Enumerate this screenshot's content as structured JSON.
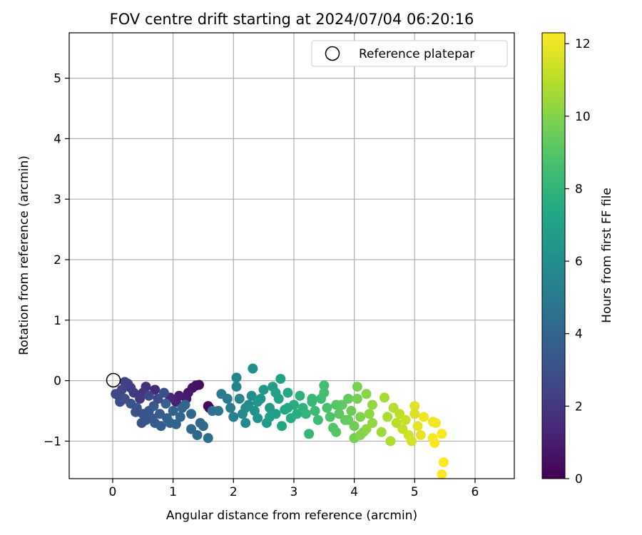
{
  "chart_data": {
    "type": "scatter",
    "title": "FOV centre drift starting at 2024/07/04 06:20:16",
    "xlabel": "Angular distance from reference (arcmin)",
    "ylabel": "Rotation from reference (arcmin)",
    "xlim": [
      -0.72,
      6.65
    ],
    "ylim": [
      -1.62,
      5.75
    ],
    "x_ticks": [
      "0",
      "1",
      "2",
      "3",
      "4",
      "5",
      "6"
    ],
    "y_ticks": [
      "−1",
      "0",
      "1",
      "2",
      "3",
      "4",
      "5"
    ],
    "grid": true,
    "legend": {
      "position": "top-right",
      "entries": [
        "Reference platepar"
      ]
    },
    "reference_point": {
      "x": 0,
      "y": 0,
      "label": "Reference platepar"
    },
    "colorbar": {
      "label": "Hours from first FF file",
      "range": [
        0,
        12.3
      ],
      "ticks": [
        "0",
        "2",
        "4",
        "6",
        "8",
        "10",
        "12"
      ],
      "colormap": "viridis"
    },
    "points": [
      {
        "x": 1.6,
        "y": -0.45,
        "h": 0.1
      },
      {
        "x": 1.58,
        "y": -0.42,
        "h": 0.2
      },
      {
        "x": 1.38,
        "y": -0.08,
        "h": 0.4
      },
      {
        "x": 1.43,
        "y": -0.07,
        "h": 0.5
      },
      {
        "x": 1.32,
        "y": -0.12,
        "h": 0.6
      },
      {
        "x": 1.25,
        "y": -0.2,
        "h": 0.8
      },
      {
        "x": 1.22,
        "y": -0.3,
        "h": 0.9
      },
      {
        "x": 1.1,
        "y": -0.25,
        "h": 1.0
      },
      {
        "x": 1.05,
        "y": -0.35,
        "h": 1.1
      },
      {
        "x": 0.95,
        "y": -0.28,
        "h": 1.3
      },
      {
        "x": 0.7,
        "y": -0.15,
        "h": 1.5
      },
      {
        "x": 0.55,
        "y": -0.1,
        "h": 1.7
      },
      {
        "x": 0.5,
        "y": -0.2,
        "h": 1.9
      },
      {
        "x": 0.45,
        "y": -0.3,
        "h": 2.0
      },
      {
        "x": 0.35,
        "y": -0.2,
        "h": 2.1
      },
      {
        "x": 0.3,
        "y": -0.12,
        "h": 2.2
      },
      {
        "x": 0.25,
        "y": -0.05,
        "h": 2.3
      },
      {
        "x": 0.2,
        "y": -0.02,
        "h": 2.4
      },
      {
        "x": 0.15,
        "y": -0.15,
        "h": 2.5
      },
      {
        "x": 0.1,
        "y": -0.25,
        "h": 2.6
      },
      {
        "x": 0.05,
        "y": -0.22,
        "h": 2.7
      },
      {
        "x": 0.12,
        "y": -0.35,
        "h": 2.8
      },
      {
        "x": 0.2,
        "y": -0.3,
        "h": 2.9
      },
      {
        "x": 0.3,
        "y": -0.38,
        "h": 3.0
      },
      {
        "x": 0.4,
        "y": -0.45,
        "h": 3.1
      },
      {
        "x": 0.5,
        "y": -0.55,
        "h": 3.2
      },
      {
        "x": 0.6,
        "y": -0.5,
        "h": 3.3
      },
      {
        "x": 0.65,
        "y": -0.62,
        "h": 3.4
      },
      {
        "x": 0.7,
        "y": -0.7,
        "h": 3.5
      },
      {
        "x": 0.8,
        "y": -0.75,
        "h": 3.6
      },
      {
        "x": 0.9,
        "y": -0.62,
        "h": 3.7
      },
      {
        "x": 0.95,
        "y": -0.7,
        "h": 3.8
      },
      {
        "x": 1.05,
        "y": -0.72,
        "h": 3.9
      },
      {
        "x": 1.12,
        "y": -0.6,
        "h": 4.0
      },
      {
        "x": 1.3,
        "y": -0.8,
        "h": 4.1
      },
      {
        "x": 1.4,
        "y": -0.9,
        "h": 4.2
      },
      {
        "x": 1.5,
        "y": -0.75,
        "h": 4.3
      },
      {
        "x": 1.58,
        "y": -0.95,
        "h": 4.4
      },
      {
        "x": 1.45,
        "y": -0.7,
        "h": 4.2
      },
      {
        "x": 1.3,
        "y": -0.55,
        "h": 4.1
      },
      {
        "x": 1.15,
        "y": -0.45,
        "h": 4.0
      },
      {
        "x": 1.0,
        "y": -0.5,
        "h": 3.9
      },
      {
        "x": 0.88,
        "y": -0.38,
        "h": 3.8
      },
      {
        "x": 0.78,
        "y": -0.55,
        "h": 3.6
      },
      {
        "x": 0.68,
        "y": -0.42,
        "h": 3.4
      },
      {
        "x": 0.55,
        "y": -0.65,
        "h": 3.3
      },
      {
        "x": 0.48,
        "y": -0.7,
        "h": 3.1
      },
      {
        "x": 0.38,
        "y": -0.52,
        "h": 3.0
      },
      {
        "x": 0.6,
        "y": -0.25,
        "h": 2.6
      },
      {
        "x": 0.75,
        "y": -0.3,
        "h": 2.8
      },
      {
        "x": 0.85,
        "y": -0.2,
        "h": 3.0
      },
      {
        "x": 1.2,
        "y": -0.4,
        "h": 4.1
      },
      {
        "x": 1.65,
        "y": -0.5,
        "h": 4.6
      },
      {
        "x": 1.75,
        "y": -0.5,
        "h": 4.8
      },
      {
        "x": 1.8,
        "y": -0.22,
        "h": 5.0
      },
      {
        "x": 1.9,
        "y": -0.3,
        "h": 5.1
      },
      {
        "x": 1.95,
        "y": -0.45,
        "h": 5.2
      },
      {
        "x": 2.0,
        "y": -0.6,
        "h": 5.3
      },
      {
        "x": 2.05,
        "y": -0.1,
        "h": 5.4
      },
      {
        "x": 2.05,
        "y": 0.05,
        "h": 5.5
      },
      {
        "x": 2.1,
        "y": -0.3,
        "h": 5.6
      },
      {
        "x": 2.15,
        "y": -0.55,
        "h": 5.7
      },
      {
        "x": 2.2,
        "y": -0.7,
        "h": 5.8
      },
      {
        "x": 2.25,
        "y": -0.4,
        "h": 5.9
      },
      {
        "x": 2.3,
        "y": -0.25,
        "h": 6.0
      },
      {
        "x": 2.32,
        "y": 0.2,
        "h": 6.1
      },
      {
        "x": 2.35,
        "y": -0.5,
        "h": 6.2
      },
      {
        "x": 2.4,
        "y": -0.62,
        "h": 6.3
      },
      {
        "x": 2.45,
        "y": -0.3,
        "h": 6.4
      },
      {
        "x": 2.5,
        "y": -0.15,
        "h": 6.5
      },
      {
        "x": 2.55,
        "y": -0.7,
        "h": 6.6
      },
      {
        "x": 2.6,
        "y": -0.45,
        "h": 6.7
      },
      {
        "x": 2.65,
        "y": -0.1,
        "h": 6.8
      },
      {
        "x": 2.7,
        "y": -0.55,
        "h": 6.9
      },
      {
        "x": 2.75,
        "y": -0.3,
        "h": 7.0
      },
      {
        "x": 2.78,
        "y": 0.03,
        "h": 7.1
      },
      {
        "x": 2.8,
        "y": -0.75,
        "h": 7.2
      },
      {
        "x": 2.85,
        "y": -0.48,
        "h": 7.3
      },
      {
        "x": 2.9,
        "y": -0.2,
        "h": 7.4
      },
      {
        "x": 2.95,
        "y": -0.62,
        "h": 7.5
      },
      {
        "x": 3.0,
        "y": -0.4,
        "h": 7.6
      },
      {
        "x": 3.05,
        "y": -0.55,
        "h": 7.7
      },
      {
        "x": 3.1,
        "y": -0.25,
        "h": 7.8
      },
      {
        "x": 3.15,
        "y": -0.45,
        "h": 7.9
      },
      {
        "x": 2.2,
        "y": -0.45,
        "h": 5.9
      },
      {
        "x": 2.4,
        "y": -0.35,
        "h": 6.4
      },
      {
        "x": 2.6,
        "y": -0.6,
        "h": 6.9
      },
      {
        "x": 2.7,
        "y": -0.2,
        "h": 7.1
      },
      {
        "x": 2.9,
        "y": -0.45,
        "h": 7.4
      },
      {
        "x": 3.2,
        "y": -0.55,
        "h": 8.0
      },
      {
        "x": 3.25,
        "y": -0.88,
        "h": 8.1
      },
      {
        "x": 3.3,
        "y": -0.35,
        "h": 8.2
      },
      {
        "x": 3.35,
        "y": -0.5,
        "h": 8.3
      },
      {
        "x": 3.4,
        "y": -0.65,
        "h": 8.4
      },
      {
        "x": 3.45,
        "y": -0.3,
        "h": 8.5
      },
      {
        "x": 3.5,
        "y": -0.08,
        "h": 8.6
      },
      {
        "x": 3.55,
        "y": -0.45,
        "h": 8.7
      },
      {
        "x": 3.6,
        "y": -0.6,
        "h": 8.8
      },
      {
        "x": 3.65,
        "y": -0.78,
        "h": 8.9
      },
      {
        "x": 3.7,
        "y": -0.85,
        "h": 9.0
      },
      {
        "x": 3.75,
        "y": -0.55,
        "h": 9.1
      },
      {
        "x": 3.8,
        "y": -0.4,
        "h": 9.2
      },
      {
        "x": 3.85,
        "y": -0.65,
        "h": 9.3
      },
      {
        "x": 3.9,
        "y": -0.3,
        "h": 9.4
      },
      {
        "x": 3.95,
        "y": -0.5,
        "h": 9.5
      },
      {
        "x": 4.0,
        "y": -0.75,
        "h": 9.6
      },
      {
        "x": 4.05,
        "y": -0.3,
        "h": 9.7
      },
      {
        "x": 4.05,
        "y": -0.1,
        "h": 9.8
      },
      {
        "x": 4.1,
        "y": -0.6,
        "h": 9.9
      },
      {
        "x": 4.15,
        "y": -0.85,
        "h": 10.0
      },
      {
        "x": 4.2,
        "y": -0.22,
        "h": 10.1
      },
      {
        "x": 4.25,
        "y": -0.55,
        "h": 10.2
      },
      {
        "x": 4.3,
        "y": -0.7,
        "h": 10.3
      },
      {
        "x": 4.0,
        "y": -0.95,
        "h": 9.7
      },
      {
        "x": 4.1,
        "y": -0.9,
        "h": 10.0
      },
      {
        "x": 4.2,
        "y": -0.8,
        "h": 10.2
      },
      {
        "x": 4.45,
        "y": -0.85,
        "h": 10.5
      },
      {
        "x": 4.5,
        "y": -0.28,
        "h": 10.6
      },
      {
        "x": 4.55,
        "y": -0.6,
        "h": 10.7
      },
      {
        "x": 4.6,
        "y": -1.0,
        "h": 10.8
      },
      {
        "x": 4.65,
        "y": -0.45,
        "h": 10.9
      },
      {
        "x": 4.7,
        "y": -0.7,
        "h": 11.0
      },
      {
        "x": 4.75,
        "y": -0.55,
        "h": 11.1
      },
      {
        "x": 4.8,
        "y": -0.8,
        "h": 11.2
      },
      {
        "x": 4.85,
        "y": -0.65,
        "h": 11.3
      },
      {
        "x": 4.9,
        "y": -0.9,
        "h": 11.4
      },
      {
        "x": 4.95,
        "y": -1.0,
        "h": 11.5
      },
      {
        "x": 5.0,
        "y": -0.55,
        "h": 11.6
      },
      {
        "x": 5.0,
        "y": -0.42,
        "h": 11.7
      },
      {
        "x": 5.05,
        "y": -0.75,
        "h": 11.8
      },
      {
        "x": 5.1,
        "y": -0.9,
        "h": 11.9
      },
      {
        "x": 5.15,
        "y": -0.6,
        "h": 12.0
      },
      {
        "x": 5.3,
        "y": -0.68,
        "h": 12.1
      },
      {
        "x": 5.35,
        "y": -0.7,
        "h": 12.1
      },
      {
        "x": 5.3,
        "y": -0.95,
        "h": 12.2
      },
      {
        "x": 5.33,
        "y": -1.03,
        "h": 12.2
      },
      {
        "x": 5.45,
        "y": -0.88,
        "h": 12.3
      },
      {
        "x": 5.48,
        "y": -1.35,
        "h": 12.3
      },
      {
        "x": 5.45,
        "y": -1.55,
        "h": 12.3
      },
      {
        "x": 3.3,
        "y": -0.3,
        "h": 8.2
      },
      {
        "x": 3.5,
        "y": -0.2,
        "h": 8.6
      },
      {
        "x": 3.7,
        "y": -0.4,
        "h": 9.0
      },
      {
        "x": 3.9,
        "y": -0.65,
        "h": 9.4
      },
      {
        "x": 4.3,
        "y": -0.4,
        "h": 10.3
      }
    ]
  }
}
